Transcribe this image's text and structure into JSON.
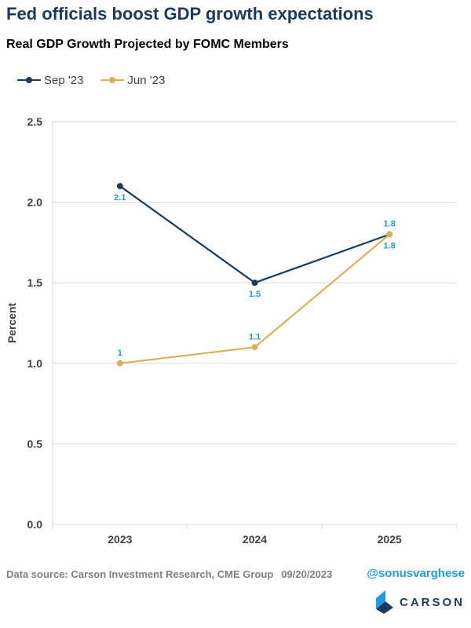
{
  "title": "Fed officials boost GDP growth expectations",
  "colors": {
    "title": "#1b3a5c",
    "sep_series": "#1b3a5c",
    "jun_series": "#d4b45a",
    "data_label": "#1f9ce0",
    "grid": "#d9d9d9"
  },
  "chart_data": {
    "type": "line",
    "title": "Real GDP Growth Projected by FOMC Members",
    "xlabel": "",
    "ylabel": "Percent",
    "categories": [
      "2023",
      "2024",
      "2025"
    ],
    "ylim": [
      0,
      2.5
    ],
    "yticks": [
      "0.0",
      "0.5",
      "1.0",
      "1.5",
      "2.0",
      "2.5"
    ],
    "grid": true,
    "legend_position": "top-left",
    "series": [
      {
        "name": "Sep '23",
        "values": [
          2.1,
          1.5,
          1.8
        ],
        "labels": [
          "2.1",
          "1.5",
          "1.8"
        ],
        "color": "#1b3a5c",
        "label_side": [
          "below",
          "below",
          "above"
        ]
      },
      {
        "name": "Jun '23",
        "values": [
          1.0,
          1.1,
          1.8
        ],
        "labels": [
          "1",
          "1.1",
          "1.8"
        ],
        "color": "#d4b45a",
        "label_side": [
          "above",
          "above",
          "below"
        ]
      }
    ]
  },
  "footer": {
    "source": "Data source: Carson Investment Research, CME Group",
    "date": "09/20/2023",
    "handle": "@sonusvarghese",
    "brand": "CARSON"
  }
}
